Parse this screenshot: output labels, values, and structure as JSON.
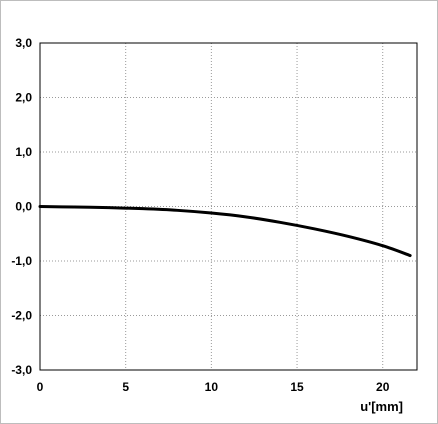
{
  "chart_data": {
    "type": "line",
    "title": "",
    "xlabel": "u'[mm]",
    "ylabel": "",
    "xlim": [
      0,
      22
    ],
    "ylim": [
      -3,
      3
    ],
    "x_ticks": [
      0,
      5,
      10,
      15,
      20
    ],
    "y_ticks": [
      3,
      2,
      1,
      0,
      -1,
      -2,
      -3
    ],
    "x_tick_labels": [
      "0",
      "5",
      "10",
      "15",
      "20"
    ],
    "y_tick_labels": [
      "3,0",
      "2,0",
      "1,0",
      "0,0",
      "-1,0",
      "-2,0",
      "-3,0"
    ],
    "grid": true,
    "legend": "none",
    "series": [
      {
        "color": "#000000",
        "x": [
          0,
          2,
          4,
          6,
          8,
          10,
          12,
          14,
          16,
          18,
          20,
          21.6
        ],
        "y": [
          0.0,
          -0.01,
          -0.02,
          -0.04,
          -0.07,
          -0.12,
          -0.19,
          -0.29,
          -0.41,
          -0.55,
          -0.72,
          -0.9
        ]
      }
    ]
  },
  "colors": {
    "background": "#ffffff",
    "frame": "#000000",
    "outer_border": "#bdbdbd",
    "grid": "#9a9a9a",
    "line": "#000000"
  }
}
